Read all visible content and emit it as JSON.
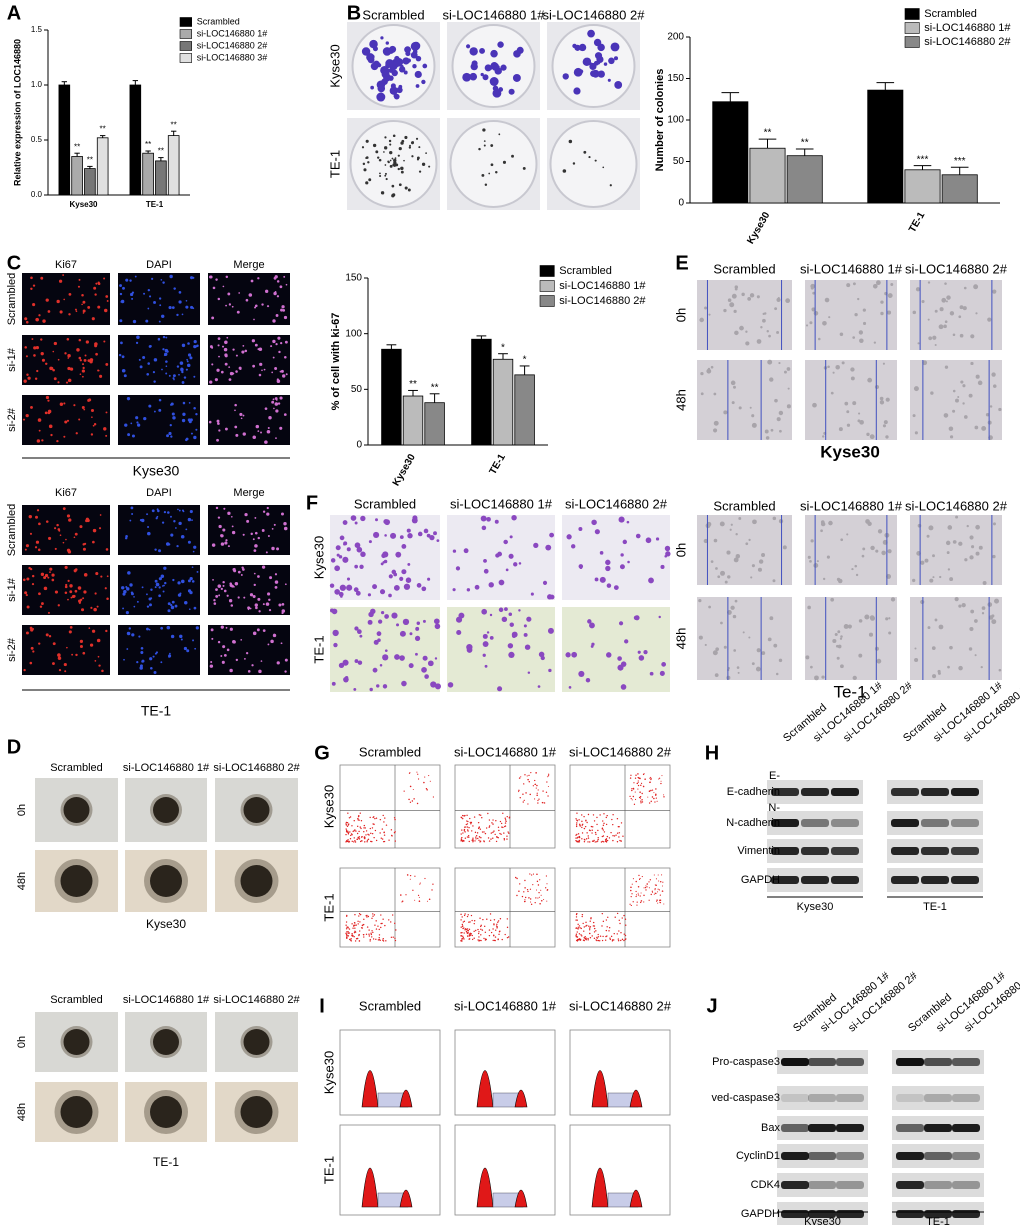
{
  "chart_data": [
    {
      "type": "bar",
      "ylabel": "Relative expression of LOC146880",
      "categories": [
        "Kyse30",
        "TE-1"
      ],
      "series": [
        {
          "name": "Scrambled",
          "color": "#000000",
          "values": [
            1.0,
            1.0
          ],
          "errors": [
            0.03,
            0.04
          ]
        },
        {
          "name": "si-LOC146880 1#",
          "color": "#aaaaaa",
          "values": [
            0.35,
            0.38
          ],
          "errors": [
            0.03,
            0.02
          ],
          "annotations": [
            "**",
            "**"
          ]
        },
        {
          "name": "si-LOC146880 2#",
          "color": "#777777",
          "values": [
            0.24,
            0.31
          ],
          "errors": [
            0.02,
            0.03
          ],
          "annotations": [
            "**",
            "**"
          ]
        },
        {
          "name": "si-LOC146880 3#",
          "color": "#e0e0e0",
          "values": [
            0.52,
            0.54
          ],
          "errors": [
            0.02,
            0.04
          ],
          "annotations": [
            "**",
            "**"
          ]
        }
      ],
      "ylim": [
        0,
        1.5
      ],
      "yticks": [
        {
          "value": 0,
          "label": "0.0"
        },
        {
          "value": 0.5,
          "label": "0.5"
        },
        {
          "value": 1,
          "label": "1.0"
        },
        {
          "value": 1.5,
          "label": "1.5"
        }
      ]
    },
    {
      "type": "bar",
      "ylabel": "Number of colonies",
      "categories": [
        "Kyse30",
        "TE-1"
      ],
      "series": [
        {
          "name": "Scrambled",
          "color": "#000000",
          "values": [
            122,
            136
          ],
          "errors": [
            11,
            9
          ]
        },
        {
          "name": "si-LOC146880 1#",
          "color": "#bbbbbb",
          "values": [
            66,
            40
          ],
          "errors": [
            11,
            5
          ],
          "annotations": [
            "**",
            "***"
          ]
        },
        {
          "name": "si-LOC146880 2#",
          "color": "#888888",
          "values": [
            57,
            34
          ],
          "errors": [
            8,
            9
          ],
          "annotations": [
            "**",
            "***"
          ]
        }
      ],
      "ylim": [
        0,
        200
      ],
      "yticks": [
        0,
        50,
        100,
        150,
        200
      ]
    },
    {
      "type": "bar",
      "ylabel": "% of cell with ki-67",
      "categories": [
        "Kyse30",
        "TE-1"
      ],
      "series": [
        {
          "name": "Scrambled",
          "color": "#000000",
          "values": [
            86,
            95
          ],
          "errors": [
            4,
            3
          ]
        },
        {
          "name": "si-LOC146880 1#",
          "color": "#bbbbbb",
          "values": [
            44,
            77
          ],
          "errors": [
            5,
            5
          ],
          "annotations": [
            "**",
            "*"
          ]
        },
        {
          "name": "si-LOC146880 2#",
          "color": "#888888",
          "values": [
            38,
            63
          ],
          "errors": [
            8,
            8
          ],
          "annotations": [
            "**",
            "*"
          ]
        }
      ],
      "ylim": [
        0,
        150
      ],
      "yticks": [
        0,
        50,
        100,
        150
      ]
    }
  ],
  "panels": {
    "A": {
      "letter": "A"
    },
    "B": {
      "letter": "B",
      "columns": [
        "Scrambled",
        "si-LOC146880 1#",
        "si-LOC146880 2#"
      ],
      "rows": [
        "Kyse30",
        "TE-1"
      ]
    },
    "C": {
      "letter": "C",
      "columns": [
        "Ki67",
        "DAPI",
        "Merge"
      ],
      "rows": [
        "Scrambled",
        "si-1#",
        "si-2#"
      ],
      "groups": [
        "Kyse30",
        "TE-1"
      ]
    },
    "E": {
      "letter": "E",
      "columns": [
        "Scrambled",
        "si-LOC146880 1#",
        "si-LOC146880 2#"
      ],
      "rows": [
        "0h",
        "48h"
      ],
      "groups": [
        "Kyse30",
        "Te-1"
      ]
    },
    "F": {
      "letter": "F",
      "columns": [
        "Scrambled",
        "si-LOC146880 1#",
        "si-LOC146880 2#"
      ],
      "rows": [
        "Kyse30",
        "TE-1"
      ]
    },
    "D": {
      "letter": "D",
      "columns": [
        "Scrambled",
        "si-LOC146880 1#",
        "si-LOC146880 2#"
      ],
      "rows": [
        "0h",
        "48h"
      ],
      "groups": [
        "Kyse30",
        "TE-1"
      ]
    },
    "G": {
      "letter": "G",
      "columns": [
        "Scrambled",
        "si-LOC146880 1#",
        "si-LOC146880 2#"
      ],
      "rows": [
        "Kyse30",
        "TE-1"
      ]
    },
    "H": {
      "letter": "H",
      "columns": [
        "Scrambled",
        "si-LOC146880 1#",
        "si-LOC146880 2#"
      ],
      "rows": [
        "E-cadherin",
        "N-cadherin",
        "Vimentin",
        "GAPDH"
      ],
      "markers": [
        "E-",
        "N-"
      ],
      "groups": [
        "Kyse30",
        "TE-1"
      ]
    },
    "I": {
      "letter": "I",
      "columns": [
        "Scrambled",
        "si-LOC146880 1#",
        "si-LOC146880 2#"
      ],
      "rows": [
        "Kyse30",
        "TE-1"
      ]
    },
    "J": {
      "letter": "J",
      "columns": [
        "Scrambled",
        "si-LOC146880 1#",
        "si-LOC146880 2#"
      ],
      "rows": [
        "Pro-caspase3",
        "ved-caspase3",
        "Bax",
        "CyclinD1",
        "CDK4",
        "GAPDH"
      ],
      "groups": [
        "Kyse30",
        "TE-1"
      ]
    }
  }
}
